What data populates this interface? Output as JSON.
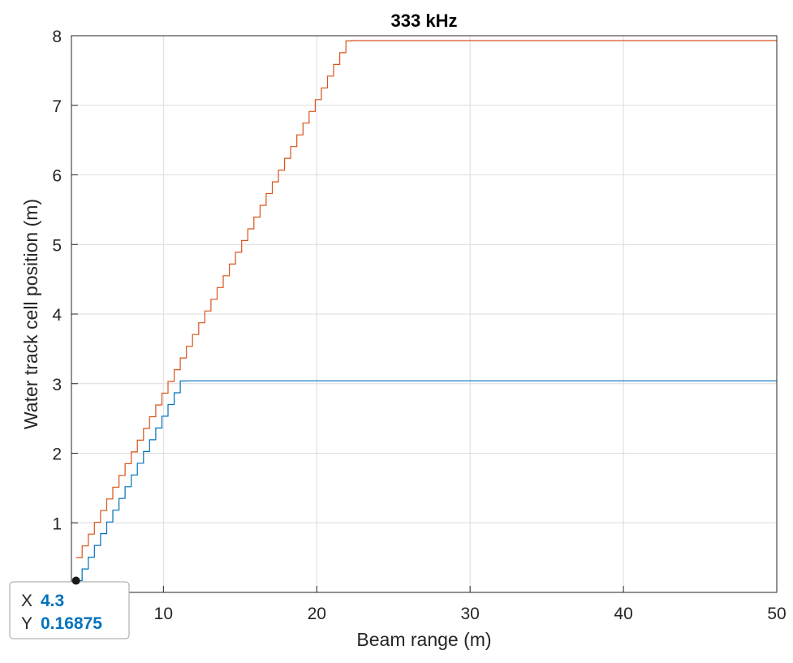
{
  "chart_data": {
    "type": "line",
    "title": "333 kHz",
    "xlabel": "Beam range (m)",
    "ylabel": "Water track cell position (m)",
    "xlim": [
      4,
      50
    ],
    "ylim": [
      0,
      8
    ],
    "xticks": [
      10,
      20,
      30,
      40,
      50
    ],
    "xtick_labels": [
      "10",
      "20",
      "30",
      "40",
      "50"
    ],
    "yticks": [
      1,
      2,
      3,
      4,
      5,
      6,
      7,
      8
    ],
    "ytick_labels": [
      "1",
      "2",
      "3",
      "4",
      "5",
      "6",
      "7",
      "8"
    ],
    "grid": true,
    "series": [
      {
        "color": "#0072BD",
        "shape": "staircase",
        "x_start": 4.3,
        "x_end": 50,
        "y_start": 0.16875,
        "y_step": 0.16875,
        "x_step": 0.4,
        "y_max": 3.04
      },
      {
        "color": "#D95319",
        "shape": "staircase",
        "x_start": 4.3,
        "x_end": 50,
        "y_start": 0.5,
        "y_step": 0.16875,
        "x_step": 0.4,
        "y_max": 7.93
      }
    ],
    "datatip": {
      "x_label": "X",
      "x_value": "4.3",
      "y_label": "Y",
      "y_value": "0.16875",
      "x": 4.3,
      "y": 0.16875,
      "value_color": "#0072BD"
    }
  }
}
